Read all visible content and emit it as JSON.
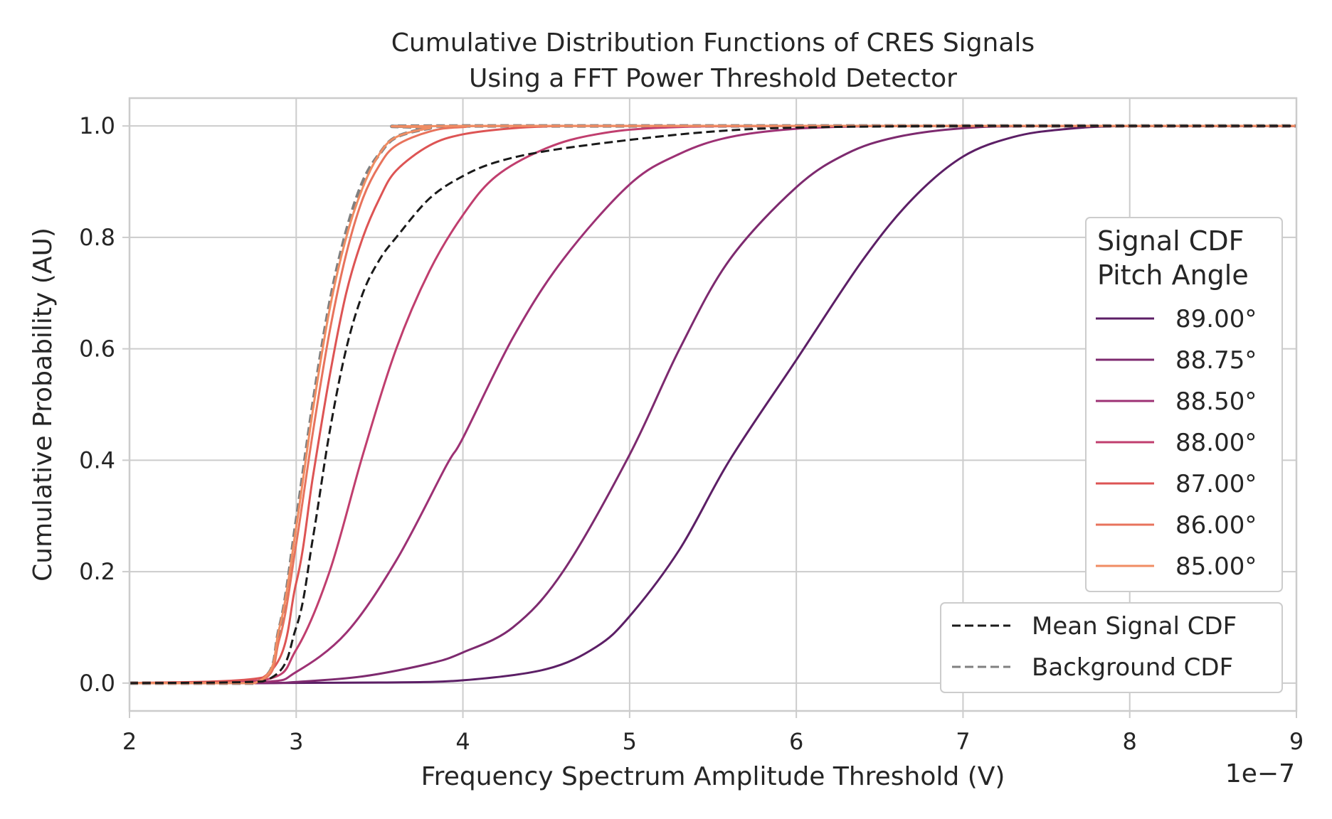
{
  "chart_data": {
    "type": "line",
    "title_lines": [
      "Cumulative Distribution Functions of CRES Signals",
      "Using a FFT Power Threshold Detector"
    ],
    "xlabel": "Frequency Spectrum Amplitude Threshold (V)",
    "ylabel": "Cumulative Probability (AU)",
    "x_offset_label": "1e−7",
    "xlim": [
      2,
      9
    ],
    "ylim": [
      -0.05,
      1.05
    ],
    "x_ticks": [
      2,
      3,
      4,
      5,
      6,
      7,
      8,
      9
    ],
    "x_tick_labels": [
      "2",
      "3",
      "4",
      "5",
      "6",
      "7",
      "8",
      "9"
    ],
    "y_ticks": [
      0,
      0.2,
      0.4,
      0.6,
      0.8,
      1.0
    ],
    "y_tick_labels": [
      "0.0",
      "0.2",
      "0.4",
      "0.6",
      "0.8",
      "1.0"
    ],
    "grid": true,
    "legend_pitch": {
      "title_lines": [
        "Signal CDF",
        "Pitch Angle"
      ],
      "placement": "center-right"
    },
    "legend_summary": {
      "placement": "lower-right"
    },
    "series": [
      {
        "name": "89.00°",
        "color": "#5c1f66",
        "x": [
          2.0,
          2.8,
          3.5,
          4.0,
          4.5,
          4.8,
          5.0,
          5.3,
          5.6,
          6.0,
          6.4,
          6.7,
          7.0,
          7.3,
          7.6,
          8.0,
          9.0
        ],
        "y": [
          0.0,
          0.0,
          0.001,
          0.005,
          0.025,
          0.065,
          0.12,
          0.24,
          0.4,
          0.58,
          0.76,
          0.87,
          0.945,
          0.98,
          0.994,
          1.0,
          1.0
        ]
      },
      {
        "name": "88.75°",
        "color": "#7d2a6f",
        "x": [
          2.0,
          2.8,
          3.0,
          3.4,
          3.8,
          4.0,
          4.3,
          4.6,
          5.0,
          5.3,
          5.6,
          6.0,
          6.3,
          6.6,
          7.0,
          7.5,
          9.0
        ],
        "y": [
          0.0,
          0.0,
          0.002,
          0.012,
          0.035,
          0.055,
          0.1,
          0.2,
          0.41,
          0.6,
          0.76,
          0.89,
          0.95,
          0.98,
          0.996,
          1.0,
          1.0
        ]
      },
      {
        "name": "88.50°",
        "color": "#9d3174",
        "x": [
          2.0,
          2.8,
          3.0,
          3.3,
          3.6,
          3.9,
          4.0,
          4.3,
          4.6,
          5.0,
          5.3,
          5.6,
          6.0,
          6.5,
          7.0,
          9.0
        ],
        "y": [
          0.0,
          0.002,
          0.02,
          0.09,
          0.22,
          0.39,
          0.44,
          0.62,
          0.76,
          0.895,
          0.95,
          0.98,
          0.995,
          1.0,
          1.0,
          1.0
        ]
      },
      {
        "name": "88.00°",
        "color": "#c03e6e",
        "x": [
          2.0,
          2.8,
          3.0,
          3.2,
          3.4,
          3.6,
          3.8,
          4.0,
          4.2,
          4.5,
          4.8,
          5.2,
          6.0,
          9.0
        ],
        "y": [
          0.0,
          0.005,
          0.06,
          0.2,
          0.41,
          0.6,
          0.74,
          0.84,
          0.91,
          0.96,
          0.985,
          0.997,
          1.0,
          1.0
        ]
      },
      {
        "name": "87.00°",
        "color": "#dd5454",
        "x": [
          2.0,
          2.8,
          3.0,
          3.1,
          3.2,
          3.3,
          3.4,
          3.5,
          3.6,
          3.8,
          4.0,
          4.3,
          4.6,
          5.0,
          9.0
        ],
        "y": [
          0.0,
          0.01,
          0.18,
          0.37,
          0.55,
          0.7,
          0.8,
          0.87,
          0.92,
          0.965,
          0.985,
          0.996,
          1.0,
          1.0,
          1.0
        ]
      },
      {
        "name": "86.00°",
        "color": "#e8735c",
        "x": [
          2.0,
          2.75,
          2.9,
          3.0,
          3.1,
          3.2,
          3.3,
          3.4,
          3.5,
          3.6,
          3.8,
          4.0,
          4.5,
          9.0
        ],
        "y": [
          0.0,
          0.0,
          0.08,
          0.25,
          0.45,
          0.63,
          0.77,
          0.87,
          0.93,
          0.965,
          0.99,
          0.998,
          1.0,
          1.0
        ]
      },
      {
        "name": "85.00°",
        "color": "#f08d63",
        "x": [
          2.0,
          2.75,
          2.9,
          3.0,
          3.1,
          3.2,
          3.3,
          3.4,
          3.5,
          3.6,
          3.8,
          4.0,
          9.0
        ],
        "y": [
          0.0,
          0.0,
          0.1,
          0.28,
          0.49,
          0.67,
          0.8,
          0.89,
          0.95,
          0.98,
          0.996,
          1.0,
          1.0
        ]
      }
    ],
    "summary_series": [
      {
        "name": "Mean Signal CDF",
        "color": "#1a1a1a",
        "dash": "dashed",
        "x": [
          2.0,
          2.8,
          3.0,
          3.1,
          3.2,
          3.3,
          3.4,
          3.5,
          3.6,
          3.8,
          4.0,
          4.2,
          4.5,
          5.0,
          5.5,
          6.0,
          7.0,
          9.0
        ],
        "y": [
          0.0,
          0.003,
          0.1,
          0.26,
          0.45,
          0.6,
          0.7,
          0.76,
          0.8,
          0.87,
          0.91,
          0.935,
          0.955,
          0.975,
          0.99,
          0.997,
          1.0,
          1.0
        ]
      },
      {
        "name": "Background CDF",
        "color": "#808080",
        "dash": "dashed",
        "x": [
          2.0,
          2.75,
          2.9,
          3.0,
          3.1,
          3.2,
          3.3,
          3.4,
          3.5,
          3.6,
          3.8,
          4.0,
          9.0
        ],
        "y": [
          0.0,
          0.0,
          0.1,
          0.29,
          0.5,
          0.68,
          0.81,
          0.9,
          0.95,
          0.98,
          0.996,
          1.0,
          1.0
        ]
      }
    ]
  }
}
